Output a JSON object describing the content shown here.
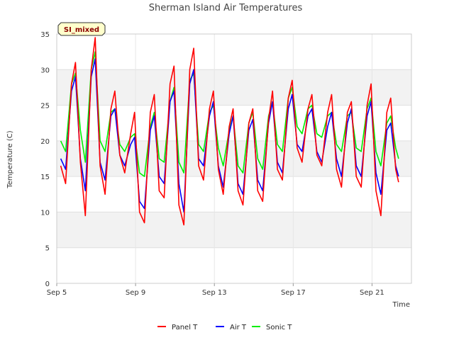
{
  "chart_data": {
    "type": "line",
    "title": "Sherman Island Air Temperatures",
    "xlabel": "Time",
    "ylabel": "Temperature (C)",
    "badge": "SI_mixed",
    "xlim": [
      0,
      18
    ],
    "ylim": [
      0,
      35
    ],
    "y_ticks": [
      0,
      5,
      10,
      15,
      20,
      25,
      30,
      35
    ],
    "x_ticks": [
      {
        "value": 0,
        "label": "Sep 5"
      },
      {
        "value": 4,
        "label": "Sep 9"
      },
      {
        "value": 8,
        "label": "Sep 13"
      },
      {
        "value": 12,
        "label": "Sep 17"
      },
      {
        "value": 16,
        "label": "Sep 21"
      }
    ],
    "x_unit": "days since Sep 5",
    "grid": true,
    "legend_position": "bottom-center",
    "series": [
      {
        "name": "Panel T",
        "color": "#ff0000",
        "points": [
          [
            0.2,
            16.5
          ],
          [
            0.45,
            14.0
          ],
          [
            0.75,
            28.0
          ],
          [
            0.95,
            31.0
          ],
          [
            1.2,
            17.0
          ],
          [
            1.45,
            9.5
          ],
          [
            1.75,
            30.0
          ],
          [
            1.95,
            34.5
          ],
          [
            2.2,
            16.5
          ],
          [
            2.45,
            12.5
          ],
          [
            2.75,
            24.5
          ],
          [
            2.95,
            27.0
          ],
          [
            3.2,
            18.0
          ],
          [
            3.45,
            15.5
          ],
          [
            3.75,
            21.0
          ],
          [
            3.95,
            24.0
          ],
          [
            4.2,
            10.0
          ],
          [
            4.45,
            8.5
          ],
          [
            4.75,
            24.0
          ],
          [
            4.95,
            26.5
          ],
          [
            5.2,
            13.0
          ],
          [
            5.45,
            12.0
          ],
          [
            5.75,
            28.0
          ],
          [
            5.95,
            30.5
          ],
          [
            6.2,
            11.0
          ],
          [
            6.45,
            8.2
          ],
          [
            6.75,
            30.0
          ],
          [
            6.95,
            33.0
          ],
          [
            7.2,
            16.5
          ],
          [
            7.45,
            14.5
          ],
          [
            7.75,
            24.5
          ],
          [
            7.95,
            27.0
          ],
          [
            8.2,
            16.0
          ],
          [
            8.45,
            12.5
          ],
          [
            8.75,
            22.0
          ],
          [
            8.95,
            24.5
          ],
          [
            9.2,
            13.0
          ],
          [
            9.45,
            11.0
          ],
          [
            9.75,
            22.5
          ],
          [
            9.95,
            24.5
          ],
          [
            10.2,
            13.0
          ],
          [
            10.45,
            11.5
          ],
          [
            10.75,
            23.0
          ],
          [
            10.95,
            27.0
          ],
          [
            11.2,
            16.0
          ],
          [
            11.45,
            14.5
          ],
          [
            11.75,
            26.0
          ],
          [
            11.95,
            28.5
          ],
          [
            12.2,
            19.0
          ],
          [
            12.45,
            17.0
          ],
          [
            12.75,
            24.5
          ],
          [
            12.95,
            26.5
          ],
          [
            13.2,
            18.0
          ],
          [
            13.45,
            16.5
          ],
          [
            13.75,
            24.0
          ],
          [
            13.95,
            26.5
          ],
          [
            14.2,
            16.0
          ],
          [
            14.45,
            13.5
          ],
          [
            14.75,
            24.0
          ],
          [
            14.95,
            25.5
          ],
          [
            15.2,
            15.0
          ],
          [
            15.45,
            13.5
          ],
          [
            15.75,
            25.0
          ],
          [
            15.95,
            28.0
          ],
          [
            16.2,
            13.0
          ],
          [
            16.45,
            9.5
          ],
          [
            16.75,
            24.0
          ],
          [
            16.95,
            26.0
          ],
          [
            17.2,
            16.0
          ],
          [
            17.35,
            14.2
          ]
        ]
      },
      {
        "name": "Air T",
        "color": "#0000ff",
        "points": [
          [
            0.2,
            17.5
          ],
          [
            0.45,
            16.0
          ],
          [
            0.75,
            27.0
          ],
          [
            0.95,
            29.0
          ],
          [
            1.2,
            17.5
          ],
          [
            1.45,
            13.0
          ],
          [
            1.75,
            29.0
          ],
          [
            1.95,
            31.5
          ],
          [
            2.2,
            17.0
          ],
          [
            2.45,
            14.5
          ],
          [
            2.75,
            23.5
          ],
          [
            2.95,
            24.5
          ],
          [
            3.2,
            18.0
          ],
          [
            3.45,
            16.5
          ],
          [
            3.75,
            19.5
          ],
          [
            3.95,
            20.5
          ],
          [
            4.2,
            11.5
          ],
          [
            4.45,
            10.5
          ],
          [
            4.75,
            21.5
          ],
          [
            4.95,
            23.5
          ],
          [
            5.2,
            15.0
          ],
          [
            5.45,
            14.0
          ],
          [
            5.75,
            25.5
          ],
          [
            5.95,
            27.0
          ],
          [
            6.2,
            14.0
          ],
          [
            6.45,
            10.0
          ],
          [
            6.75,
            28.0
          ],
          [
            6.95,
            30.0
          ],
          [
            7.2,
            17.5
          ],
          [
            7.45,
            16.5
          ],
          [
            7.75,
            23.5
          ],
          [
            7.95,
            25.5
          ],
          [
            8.2,
            16.5
          ],
          [
            8.45,
            13.5
          ],
          [
            8.75,
            21.0
          ],
          [
            8.95,
            23.5
          ],
          [
            9.2,
            14.0
          ],
          [
            9.45,
            12.5
          ],
          [
            9.75,
            21.5
          ],
          [
            9.95,
            23.0
          ],
          [
            10.2,
            14.5
          ],
          [
            10.45,
            13.0
          ],
          [
            10.75,
            22.5
          ],
          [
            10.95,
            25.5
          ],
          [
            11.2,
            17.0
          ],
          [
            11.45,
            15.5
          ],
          [
            11.75,
            24.5
          ],
          [
            11.95,
            26.5
          ],
          [
            12.2,
            19.5
          ],
          [
            12.45,
            18.5
          ],
          [
            12.75,
            23.5
          ],
          [
            12.95,
            24.5
          ],
          [
            13.2,
            18.5
          ],
          [
            13.45,
            17.0
          ],
          [
            13.75,
            22.0
          ],
          [
            13.95,
            24.0
          ],
          [
            14.2,
            17.5
          ],
          [
            14.45,
            15.0
          ],
          [
            14.75,
            22.5
          ],
          [
            14.95,
            24.5
          ],
          [
            15.2,
            16.5
          ],
          [
            15.45,
            15.0
          ],
          [
            15.75,
            23.5
          ],
          [
            15.95,
            25.5
          ],
          [
            16.2,
            15.5
          ],
          [
            16.45,
            12.5
          ],
          [
            16.75,
            21.5
          ],
          [
            16.95,
            22.5
          ],
          [
            17.2,
            16.5
          ],
          [
            17.35,
            15.0
          ]
        ]
      },
      {
        "name": "Sonic T",
        "color": "#00ee00",
        "points": [
          [
            0.2,
            20.0
          ],
          [
            0.45,
            18.5
          ],
          [
            0.75,
            28.0
          ],
          [
            0.95,
            29.5
          ],
          [
            1.2,
            21.5
          ],
          [
            1.45,
            17.0
          ],
          [
            1.75,
            30.0
          ],
          [
            1.95,
            32.5
          ],
          [
            2.2,
            20.0
          ],
          [
            2.45,
            18.5
          ],
          [
            2.75,
            24.0
          ],
          [
            2.95,
            24.5
          ],
          [
            3.2,
            19.5
          ],
          [
            3.45,
            18.5
          ],
          [
            3.75,
            20.5
          ],
          [
            3.95,
            21.0
          ],
          [
            4.2,
            15.5
          ],
          [
            4.45,
            15.0
          ],
          [
            4.75,
            22.0
          ],
          [
            4.95,
            24.0
          ],
          [
            5.2,
            17.5
          ],
          [
            5.45,
            17.0
          ],
          [
            5.75,
            25.5
          ],
          [
            5.95,
            27.5
          ],
          [
            6.2,
            17.0
          ],
          [
            6.45,
            15.5
          ],
          [
            6.75,
            28.5
          ],
          [
            6.95,
            29.5
          ],
          [
            7.2,
            19.5
          ],
          [
            7.45,
            18.5
          ],
          [
            7.75,
            24.0
          ],
          [
            7.95,
            25.0
          ],
          [
            8.2,
            19.0
          ],
          [
            8.45,
            16.5
          ],
          [
            8.75,
            21.5
          ],
          [
            8.95,
            23.5
          ],
          [
            9.2,
            16.5
          ],
          [
            9.45,
            15.5
          ],
          [
            9.75,
            22.5
          ],
          [
            9.95,
            24.0
          ],
          [
            10.2,
            17.5
          ],
          [
            10.45,
            16.0
          ],
          [
            10.75,
            23.5
          ],
          [
            10.95,
            25.5
          ],
          [
            11.2,
            19.5
          ],
          [
            11.45,
            18.5
          ],
          [
            11.75,
            26.0
          ],
          [
            11.95,
            27.5
          ],
          [
            12.2,
            22.0
          ],
          [
            12.45,
            21.0
          ],
          [
            12.75,
            24.5
          ],
          [
            12.95,
            25.0
          ],
          [
            13.2,
            21.0
          ],
          [
            13.45,
            20.5
          ],
          [
            13.75,
            23.5
          ],
          [
            13.95,
            24.0
          ],
          [
            14.2,
            19.5
          ],
          [
            14.45,
            18.5
          ],
          [
            14.75,
            23.5
          ],
          [
            14.95,
            24.0
          ],
          [
            15.2,
            19.0
          ],
          [
            15.45,
            18.5
          ],
          [
            15.75,
            24.5
          ],
          [
            15.95,
            26.0
          ],
          [
            16.2,
            18.5
          ],
          [
            16.45,
            16.5
          ],
          [
            16.75,
            22.5
          ],
          [
            16.95,
            23.5
          ],
          [
            17.2,
            19.0
          ],
          [
            17.35,
            17.5
          ]
        ]
      }
    ]
  }
}
